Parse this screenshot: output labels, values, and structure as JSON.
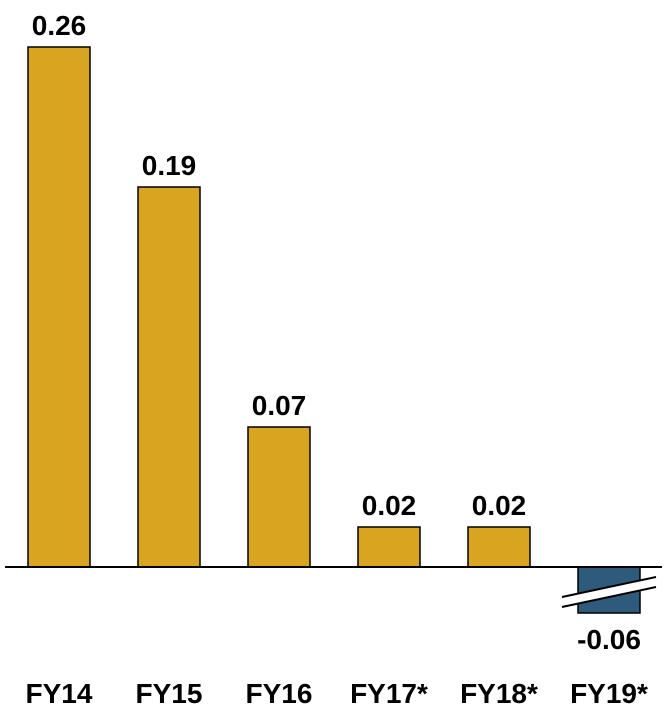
{
  "chart_data": {
    "type": "bar",
    "title": "",
    "xlabel": "",
    "ylabel": "",
    "categories": [
      "FY14",
      "FY15",
      "FY16",
      "FY17*",
      "FY18*",
      "FY19*"
    ],
    "values": [
      0.26,
      0.19,
      0.07,
      0.02,
      0.02,
      -0.06
    ],
    "value_labels": [
      "0.26",
      "0.19",
      "0.07",
      "0.02",
      "0.02",
      "-0.06"
    ],
    "axis_broken_bars": [
      "FY19*"
    ],
    "colors": {
      "positive": "#D9A521",
      "negative": "#2E5A7C",
      "axis": "#000000",
      "outline": "#000000"
    },
    "grid": false,
    "legend": "none"
  }
}
